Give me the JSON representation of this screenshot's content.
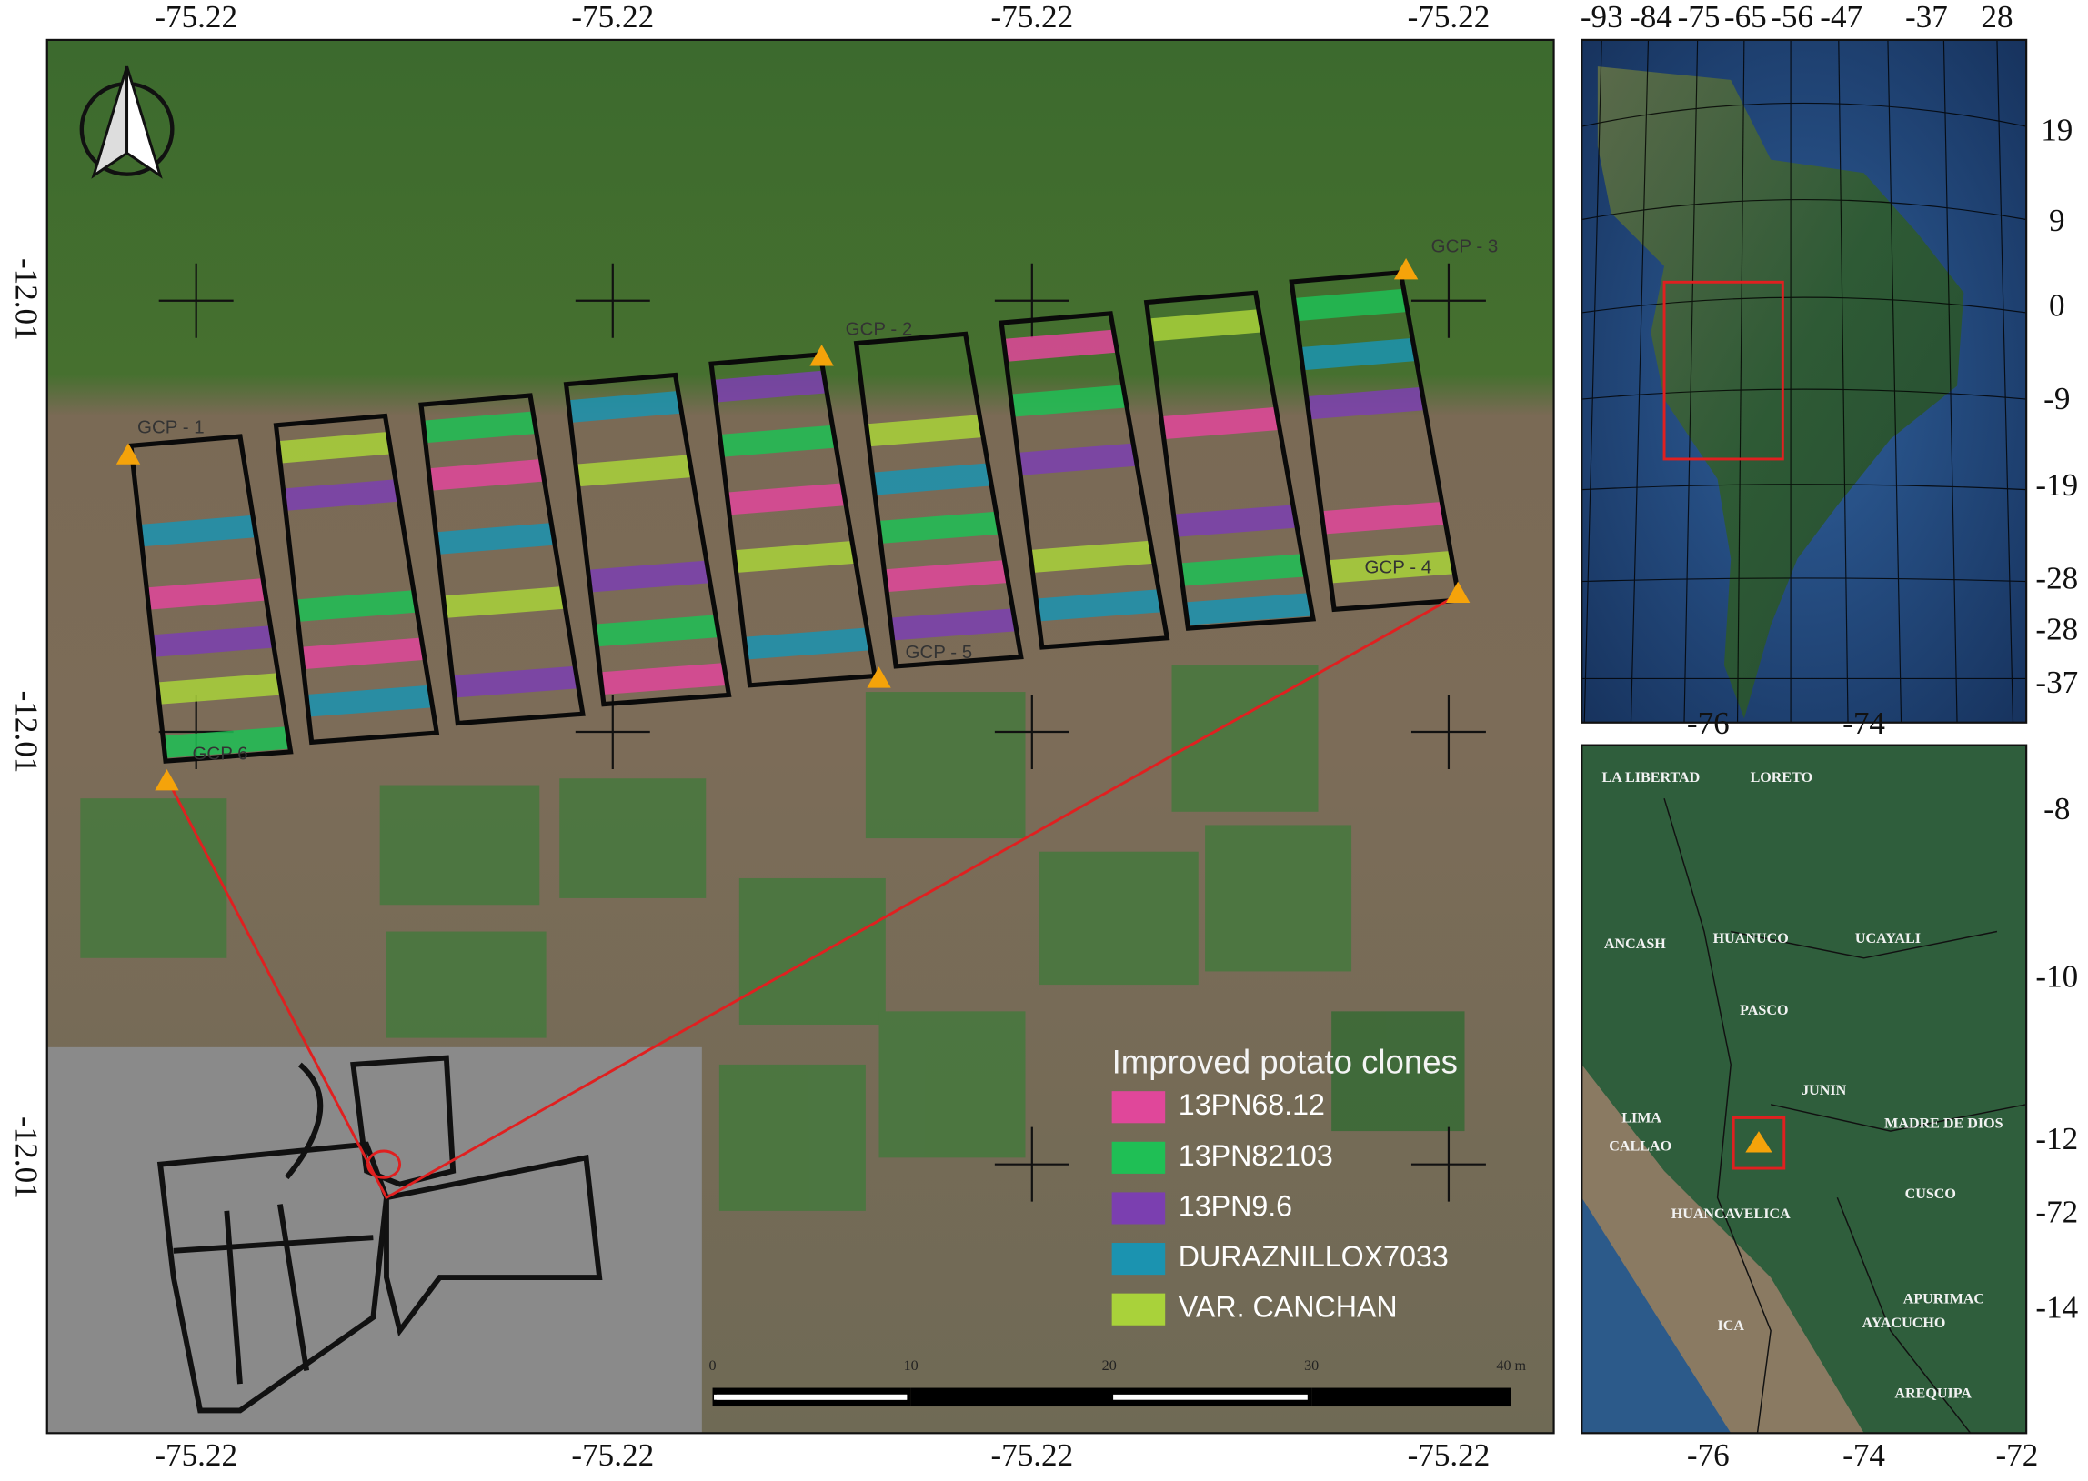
{
  "main_map": {
    "top_labels": [
      "-75.22",
      "-75.22",
      "-75.22",
      "-75.22"
    ],
    "bottom_labels": [
      "-75.22",
      "-75.22",
      "-75.22",
      "-75.22"
    ],
    "left_labels": [
      "-12.01",
      "-12.01",
      "-12.01"
    ],
    "gcp_labels": [
      "GCP - 1",
      "GCP - 2",
      "GCP - 3",
      "GCP - 4",
      "GCP - 5",
      "GCP 6"
    ],
    "legend": {
      "title": "Improved potato clones",
      "items": [
        {
          "name": "13PN68.12",
          "color": "#e0479a"
        },
        {
          "name": "13PN82103",
          "color": "#1fbf55"
        },
        {
          "name": "13PN9.6",
          "color": "#7b3fb0"
        },
        {
          "name": "DURAZNILLOX7033",
          "color": "#1b93b0"
        },
        {
          "name": "VAR. CANCHAN",
          "color": "#a9d23a"
        }
      ]
    },
    "scale_labels": [
      "0",
      "10",
      "20",
      "30",
      "40 m"
    ]
  },
  "inset_continent": {
    "top_labels": [
      "-93",
      "-84",
      "-75",
      "-65",
      "-56",
      "-47",
      "-37",
      "28"
    ],
    "right_labels": [
      "19",
      "9",
      "0",
      "-9",
      "-19",
      "-28",
      "-28",
      "-37"
    ]
  },
  "inset_region": {
    "top_labels": [
      "-76",
      "-74"
    ],
    "bottom_labels": [
      "-76",
      "-74",
      "-72"
    ],
    "right_labels": [
      "-8",
      "-10",
      "-12",
      "-72",
      "-14"
    ],
    "regions": [
      "LA LIBERTAD",
      "LORETO",
      "ANCASH",
      "HUANUCO",
      "UCAYALI",
      "PASCO",
      "LIMA",
      "JUNIN",
      "MADRE DE DIOS",
      "CALLAO",
      "HUANCAVELICA",
      "CUSCO",
      "APURIMAC",
      "AYACUCHO",
      "ICA",
      "AREQUIPA"
    ]
  }
}
